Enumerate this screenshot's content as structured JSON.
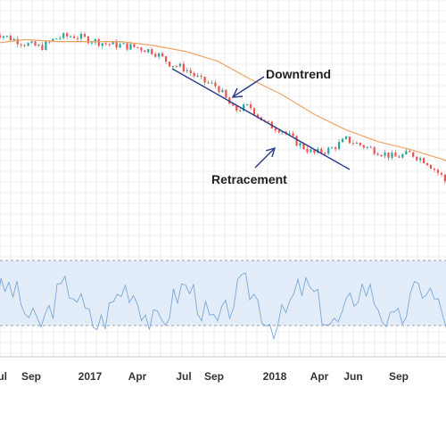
{
  "chart_data": {
    "type": "line",
    "price": {
      "x": [
        "2016-06",
        "2016-07",
        "2016-08",
        "2016-09",
        "2016-10",
        "2016-11",
        "2016-12",
        "2017-01",
        "2017-02",
        "2017-03",
        "2017-04",
        "2017-05",
        "2017-06",
        "2017-07",
        "2017-08",
        "2017-09",
        "2017-10",
        "2017-11",
        "2017-12",
        "2018-01",
        "2018-02",
        "2018-03",
        "2018-04",
        "2018-05",
        "2018-06",
        "2018-07",
        "2018-08",
        "2018-09",
        "2018-10",
        "2018-11"
      ],
      "values": [
        52,
        49,
        46,
        44,
        49,
        50,
        48,
        46,
        45,
        44,
        42,
        36,
        33,
        27,
        24,
        12,
        14,
        5,
        2,
        -5,
        -10,
        -8,
        -3,
        -6,
        -9,
        -12,
        -10,
        -14,
        -22,
        -35
      ]
    },
    "moving_average": {
      "x": [
        "2016-06",
        "2016-08",
        "2016-10",
        "2016-12",
        "2017-02",
        "2017-04",
        "2017-06",
        "2017-08",
        "2017-10",
        "2017-12",
        "2018-02",
        "2018-04",
        "2018-06",
        "2018-08",
        "2018-10",
        "2018-11"
      ],
      "values": [
        46,
        48,
        47,
        47,
        47,
        45,
        42,
        37,
        28,
        20,
        10,
        2,
        -4,
        -8,
        -13,
        -16
      ]
    },
    "rsi_panel": {
      "band_upper": 70,
      "band_lower": 30,
      "ylim": [
        0,
        100
      ]
    },
    "x_tick_labels": [
      "Jul",
      "Sep",
      "2017",
      "Apr",
      "Jul",
      "Sep",
      "2018",
      "Apr",
      "Jun",
      "Sep"
    ],
    "annotations": {
      "downtrend": "Downtrend",
      "retracement": "Retracement"
    }
  },
  "colors": {
    "up_candle": "#26a69a",
    "down_candle": "#ef5350",
    "moving_average": "#f4a261",
    "trendline": "#2b3a8c",
    "rsi_line": "#7aa7d8",
    "rsi_band": "#dce8f7",
    "grid": "#e3e3e8",
    "axis_text": "#333333"
  }
}
